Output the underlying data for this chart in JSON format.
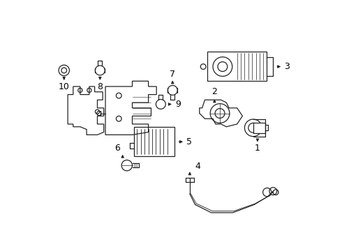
{
  "bg_color": "#ffffff",
  "lc": "#222222",
  "fig_width": 4.9,
  "fig_height": 3.6,
  "dpi": 100
}
